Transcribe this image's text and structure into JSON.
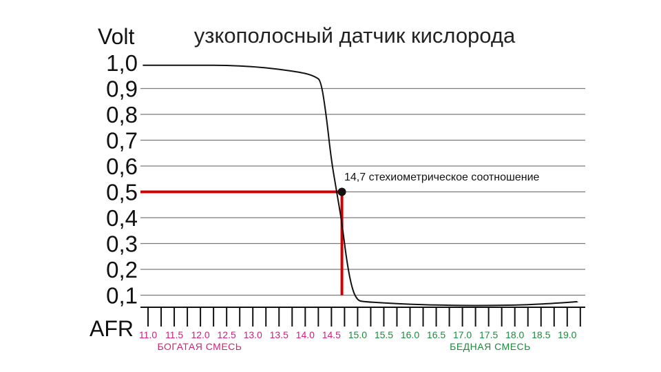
{
  "chart_data": {
    "type": "line",
    "title": "узкополосный датчик кислорода",
    "ylabel": "Volt",
    "xlabel": "AFR",
    "ylim": [
      0.1,
      1.0
    ],
    "y_ticks": [
      "1,0",
      "0,9",
      "0,8",
      "0,7",
      "0,6",
      "0,5",
      "0,4",
      "0,3",
      "0,2",
      "0,1"
    ],
    "y_tick_values": [
      1.0,
      0.9,
      0.8,
      0.7,
      0.6,
      0.5,
      0.4,
      0.3,
      0.2,
      0.1
    ],
    "x_ticks": [
      "11.0",
      "11.5",
      "12.0",
      "12.5",
      "13.0",
      "13.5",
      "14.0",
      "14.5",
      "15.0",
      "15.5",
      "16.0",
      "16.5",
      "17.0",
      "17.5",
      "18.0",
      "18.5",
      "19.0"
    ],
    "x_tick_values": [
      11.0,
      11.5,
      12.0,
      12.5,
      13.0,
      13.5,
      14.0,
      14.5,
      15.0,
      15.5,
      16.0,
      16.5,
      17.0,
      17.5,
      18.0,
      18.5,
      19.0
    ],
    "x_tick_colors": [
      "#d0207a",
      "#d0207a",
      "#d0207a",
      "#d0207a",
      "#d0207a",
      "#d0207a",
      "#d0207a",
      "#d0207a",
      "#1a8a3a",
      "#1a8a3a",
      "#1a8a3a",
      "#1a8a3a",
      "#1a8a3a",
      "#1a8a3a",
      "#1a8a3a",
      "#1a8a3a",
      "#1a8a3a"
    ],
    "grid": true,
    "series": [
      {
        "x": [
          10.9,
          11.5,
          12.0,
          12.5,
          13.0,
          13.5,
          14.0,
          14.2,
          14.3,
          14.4,
          14.5,
          14.6,
          14.7,
          14.8,
          14.9,
          15.0,
          15.1,
          15.5,
          16.0,
          16.5,
          17.0,
          17.5,
          18.0,
          18.5,
          19.2
        ],
        "y": [
          0.99,
          0.99,
          0.99,
          0.99,
          0.985,
          0.975,
          0.96,
          0.945,
          0.93,
          0.8,
          0.62,
          0.5,
          0.38,
          0.22,
          0.12,
          0.08,
          0.075,
          0.07,
          0.065,
          0.062,
          0.06,
          0.06,
          0.062,
          0.065,
          0.075
        ],
        "color": "#111111"
      }
    ],
    "marker": {
      "x": 14.7,
      "y": 0.5,
      "label": "14,7 стехиометрическое соотношение",
      "line_color": "#d40000"
    },
    "regions": [
      {
        "label": "БОГАТАЯ СМЕСЬ",
        "color": "#d0207a"
      },
      {
        "label": "БЕДНАЯ СМЕСЬ",
        "color": "#1a8a3a"
      }
    ]
  }
}
